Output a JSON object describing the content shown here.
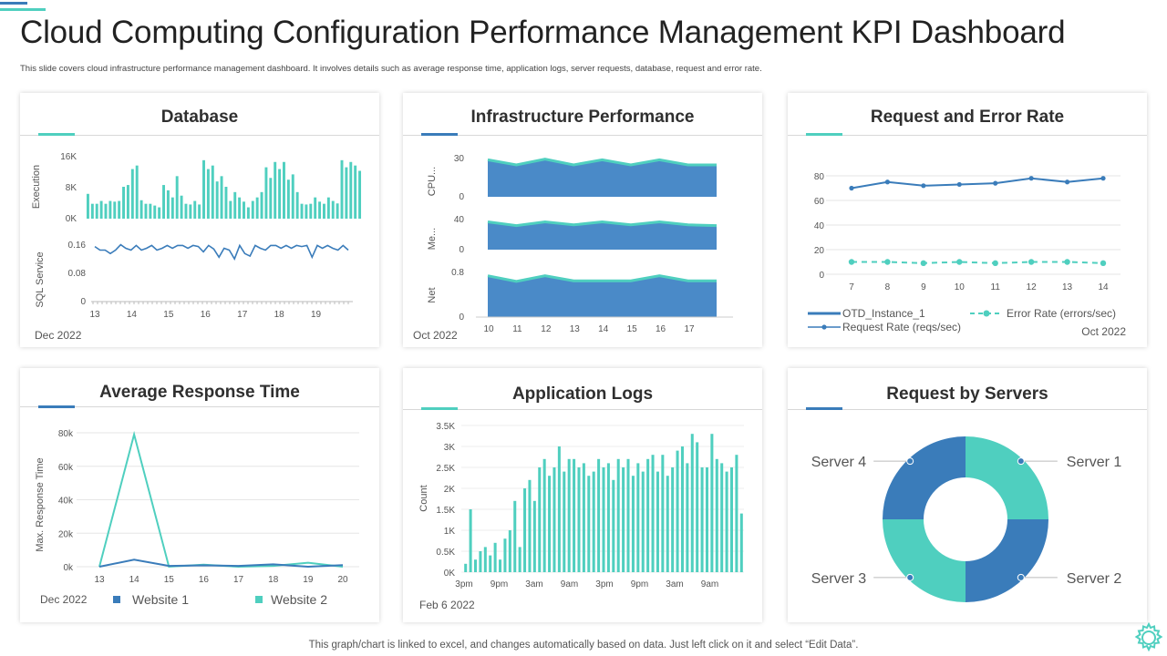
{
  "header": {
    "title": "Cloud Computing Configuration Performance Management KPI Dashboard",
    "subtitle": "This slide covers cloud infrastructure performance management dashboard. It involves details such as average response time, application logs, server requests, database, request and error rate."
  },
  "footer": {
    "note": "This graph/chart is linked to excel, and changes automatically based on data. Just left click on it and select “Edit Data”."
  },
  "colors": {
    "teal": "#4fcfbf",
    "blue": "#3a7cba",
    "area_blue": "#4a8ac8",
    "area_edge": "#4fcfbf"
  },
  "panels": {
    "database": {
      "title": "Database",
      "date": "Dec 2022"
    },
    "infrastructure": {
      "title": "Infrastructure Performance",
      "date": "Oct 2022"
    },
    "request_error": {
      "title": "Request and Error Rate",
      "date": "Oct 2022"
    },
    "avg_response": {
      "title": "Average Response Time"
    },
    "app_logs": {
      "title": "Application Logs",
      "date": "Feb 6 2022"
    },
    "servers": {
      "title": "Request by Servers"
    }
  },
  "chart_data": [
    {
      "id": "database-execution",
      "type": "bar",
      "ylabel": "Execution",
      "yticks": [
        "16K",
        "8K",
        "0K"
      ],
      "ylim": [
        0,
        18000
      ],
      "values": [
        7000,
        4200,
        4200,
        5000,
        4200,
        5000,
        4800,
        5000,
        9000,
        9500,
        14000,
        15000,
        5200,
        4200,
        4200,
        3700,
        3200,
        9500,
        8000,
        6000,
        12000,
        6500,
        4200,
        4000,
        5000,
        4000,
        16500,
        14000,
        15000,
        10500,
        12000,
        9000,
        5000,
        7500,
        6000,
        4800,
        3200,
        5000,
        6000,
        7500,
        14500,
        11500,
        16000,
        14000,
        16000,
        11000,
        12500,
        7500,
        4200,
        4000,
        4200,
        6000,
        4800,
        4200,
        6000,
        5000,
        4300,
        16500,
        14500,
        16000,
        15000,
        13500
      ]
    },
    {
      "id": "database-sql",
      "type": "line",
      "ylabel": "SQL Service",
      "yticks": [
        "0.16",
        "0.08",
        "0"
      ],
      "ylim": [
        0,
        0.2
      ],
      "xticks": [
        "13",
        "14",
        "15",
        "16",
        "17",
        "18",
        "19"
      ],
      "x_range": [
        13,
        20
      ],
      "values": [
        0.155,
        0.145,
        0.145,
        0.135,
        0.145,
        0.16,
        0.15,
        0.145,
        0.158,
        0.145,
        0.15,
        0.158,
        0.145,
        0.15,
        0.158,
        0.15,
        0.158,
        0.158,
        0.15,
        0.158,
        0.155,
        0.14,
        0.158,
        0.148,
        0.125,
        0.15,
        0.145,
        0.12,
        0.158,
        0.135,
        0.128,
        0.158,
        0.15,
        0.145,
        0.158,
        0.158,
        0.15,
        0.158,
        0.15,
        0.158,
        0.155,
        0.158,
        0.125,
        0.158,
        0.15,
        0.158,
        0.15,
        0.145,
        0.158,
        0.145
      ]
    },
    {
      "id": "infra-cpu",
      "type": "area",
      "ylabel": "CPU...",
      "yticks": [
        "30",
        "0"
      ],
      "ylim": [
        0,
        30
      ],
      "x": [
        10,
        11,
        12,
        13,
        14,
        15,
        16,
        17,
        18
      ],
      "values": [
        29,
        25,
        29.5,
        25,
        29,
        25,
        29,
        25,
        25
      ]
    },
    {
      "id": "infra-mem",
      "type": "area",
      "ylabel": "Me...",
      "yticks": [
        "40",
        "0"
      ],
      "ylim": [
        0,
        40
      ],
      "x": [
        10,
        11,
        12,
        13,
        14,
        15,
        16,
        17,
        18
      ],
      "values": [
        37,
        32,
        37,
        33,
        37,
        33,
        37,
        33,
        32
      ]
    },
    {
      "id": "infra-net",
      "type": "area",
      "ylabel": "Net",
      "yticks": [
        "0.8",
        "0"
      ],
      "ylim": [
        0,
        0.8
      ],
      "xticks": [
        "10",
        "11",
        "12",
        "13",
        "14",
        "15",
        "16",
        "17"
      ],
      "x": [
        10,
        11,
        12,
        13,
        14,
        15,
        16,
        17,
        18
      ],
      "values": [
        0.74,
        0.64,
        0.74,
        0.65,
        0.65,
        0.65,
        0.74,
        0.65,
        0.65
      ]
    },
    {
      "id": "request-error",
      "type": "line",
      "yticks": [
        "80",
        "60",
        "40",
        "20",
        "0"
      ],
      "ylim": [
        0,
        80
      ],
      "xticks": [
        "7",
        "8",
        "9",
        "10",
        "11",
        "12",
        "13",
        "14"
      ],
      "x": [
        7,
        8,
        9,
        10,
        11,
        12,
        13,
        14
      ],
      "series": [
        {
          "name": "Request Rate (reqs/sec)",
          "values": [
            70,
            75,
            72,
            73,
            74,
            78,
            75,
            78
          ]
        },
        {
          "name": "Error Rate (errors/sec)",
          "values": [
            10,
            10,
            9,
            10,
            9,
            10,
            10,
            9
          ]
        }
      ],
      "legend": [
        "OTD_Instance_1",
        "Error Rate (errors/sec)",
        "Request Rate (reqs/sec)"
      ]
    },
    {
      "id": "avg-response",
      "type": "line",
      "ylabel": "Max. Response Time",
      "yticks": [
        "80k",
        "60k",
        "40k",
        "20k",
        "0k"
      ],
      "ylim": [
        0,
        80000
      ],
      "xticks": [
        "13",
        "14",
        "15",
        "16",
        "17",
        "18",
        "19",
        "20"
      ],
      "x": [
        13,
        14,
        15,
        16,
        17,
        18,
        19,
        20
      ],
      "series": [
        {
          "name": "Website 1",
          "values": [
            0,
            4200,
            500,
            800,
            500,
            1400,
            0,
            1000
          ]
        },
        {
          "name": "Website 2",
          "values": [
            0,
            79000,
            0,
            1200,
            0,
            500,
            2400,
            0
          ]
        }
      ],
      "date": "Dec 2022"
    },
    {
      "id": "app-logs",
      "type": "bar",
      "ylabel": "Count",
      "yticks": [
        "3.5K",
        "3K",
        "2.5K",
        "2K",
        "1.5K",
        "1K",
        "0.5K",
        "0K"
      ],
      "ylim": [
        0,
        3500
      ],
      "xticks": [
        "3pm",
        "9pm",
        "3am",
        "9am",
        "3pm",
        "9pm",
        "3am",
        "9am"
      ],
      "values": [
        200,
        1500,
        300,
        500,
        600,
        400,
        700,
        300,
        800,
        1000,
        1700,
        600,
        2000,
        2200,
        1700,
        2500,
        2700,
        2300,
        2500,
        3000,
        2400,
        2700,
        2700,
        2500,
        2600,
        2300,
        2400,
        2700,
        2500,
        2600,
        2200,
        2700,
        2500,
        2700,
        2300,
        2600,
        2400,
        2700,
        2800,
        2400,
        2800,
        2300,
        2500,
        2900,
        3000,
        2600,
        3300,
        3100,
        2500,
        2500,
        3300,
        2700,
        2600,
        2400,
        2500,
        2800,
        1400
      ]
    },
    {
      "id": "request-servers",
      "type": "pie",
      "categories": [
        "Server 1",
        "Server 2",
        "Server 3",
        "Server 4"
      ],
      "values": [
        25,
        25,
        25,
        25
      ],
      "colors": [
        "#4fcfbf",
        "#3a7cba",
        "#4fcfbf",
        "#3a7cba"
      ]
    }
  ]
}
